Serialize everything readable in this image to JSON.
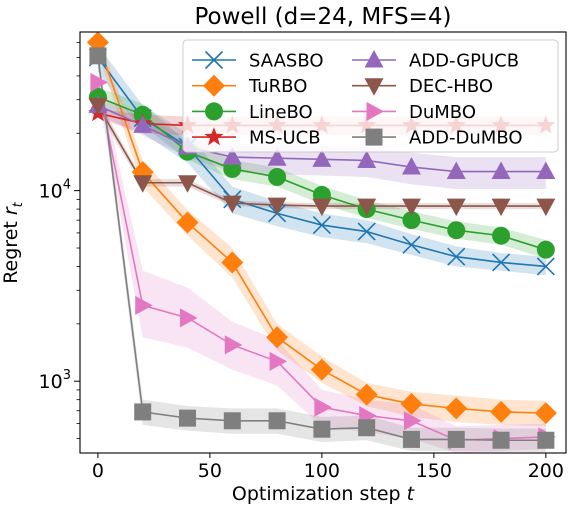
{
  "chart_data": {
    "type": "line",
    "title": "Powell (d=24, MFS=4)",
    "xlabel": "Optimization step",
    "xlabel_var": "t",
    "ylabel": "Regret",
    "ylabel_var": "r",
    "ylabel_sub": "t",
    "xlim": [
      -8,
      209
    ],
    "ylim": [
      420,
      68000
    ],
    "yscale": "log",
    "x_ticks": [
      0,
      50,
      100,
      150,
      200
    ],
    "y_ticks": [
      {
        "value": 1000,
        "base": "10",
        "exp": "3"
      },
      {
        "value": 10000,
        "base": "10",
        "exp": "4"
      }
    ],
    "grid": false,
    "legend_position": "top-right",
    "series": [
      {
        "name": "SAASBO",
        "color": "#1f77b4",
        "marker": "x",
        "x": [
          0,
          20,
          40,
          60,
          80,
          100,
          120,
          140,
          160,
          180,
          200
        ],
        "y": [
          50000,
          24000,
          17000,
          9000,
          7600,
          6600,
          6100,
          5200,
          4500,
          4200,
          4000
        ],
        "lo": [
          42000,
          20000,
          14000,
          7600,
          6500,
          5700,
          5300,
          4600,
          4000,
          3800,
          3600
        ],
        "hi": [
          58000,
          28000,
          20000,
          10500,
          8800,
          7600,
          7000,
          5900,
          5100,
          4700,
          4500
        ]
      },
      {
        "name": "TuRBO",
        "color": "#ff7f0e",
        "marker": "D",
        "x": [
          0,
          20,
          40,
          60,
          80,
          100,
          120,
          140,
          160,
          180,
          200
        ],
        "y": [
          60000,
          12500,
          6800,
          4200,
          1700,
          1150,
          850,
          760,
          720,
          690,
          680
        ],
        "lo": [
          52000,
          10500,
          5800,
          3500,
          1450,
          980,
          740,
          650,
          610,
          590,
          580
        ],
        "hi": [
          66000,
          14500,
          7900,
          5000,
          2000,
          1350,
          980,
          880,
          840,
          800,
          790
        ]
      },
      {
        "name": "LineBO",
        "color": "#2ca02c",
        "marker": "o",
        "x": [
          0,
          20,
          40,
          60,
          80,
          100,
          120,
          140,
          160,
          180,
          200
        ],
        "y": [
          31000,
          25000,
          16000,
          13000,
          11800,
          9500,
          8000,
          7000,
          6200,
          5800,
          4900
        ],
        "lo": [
          27000,
          22000,
          14500,
          11500,
          10500,
          8500,
          7200,
          6300,
          5600,
          5200,
          4400
        ],
        "hi": [
          35000,
          28500,
          18000,
          14500,
          13200,
          10600,
          8900,
          7800,
          6900,
          6400,
          5500
        ]
      },
      {
        "name": "MS-UCB",
        "color": "#d62728",
        "marker": "*",
        "x": [
          0,
          20,
          40,
          60,
          80,
          100,
          120,
          140,
          160,
          180,
          200
        ],
        "y": [
          25500,
          22500,
          22000,
          22000,
          22000,
          22000,
          22000,
          22000,
          22000,
          22000,
          22000
        ],
        "lo": [
          24000,
          20000,
          19500,
          19500,
          19500,
          19500,
          19500,
          19500,
          19500,
          19500,
          19500
        ],
        "hi": [
          27000,
          25000,
          24500,
          24500,
          24500,
          24500,
          24500,
          24500,
          24500,
          24500,
          24500
        ]
      },
      {
        "name": "ADD-GPUCB",
        "color": "#9467bd",
        "marker": "^",
        "x": [
          0,
          20,
          40,
          60,
          80,
          100,
          120,
          140,
          160,
          180,
          200
        ],
        "y": [
          28000,
          22000,
          17000,
          15000,
          14800,
          14600,
          14400,
          13300,
          12600,
          12600,
          12600
        ],
        "lo": [
          25000,
          19500,
          15000,
          12500,
          12200,
          12000,
          11800,
          10800,
          10200,
          10200,
          10200
        ],
        "hi": [
          31000,
          24500,
          19000,
          17500,
          17400,
          17200,
          17000,
          15800,
          15000,
          15000,
          15000
        ]
      },
      {
        "name": "DEC-HBO",
        "color": "#8c564b",
        "marker": "v",
        "x": [
          0,
          20,
          40,
          60,
          80,
          100,
          120,
          140,
          160,
          180,
          200
        ],
        "y": [
          28000,
          11000,
          11000,
          8600,
          8400,
          8300,
          8300,
          8300,
          8300,
          8300,
          8300
        ],
        "lo": [
          26000,
          10500,
          10500,
          8300,
          8100,
          8000,
          8000,
          8000,
          8000,
          8000,
          8000
        ],
        "hi": [
          30000,
          11500,
          11500,
          8900,
          8700,
          8600,
          8600,
          8600,
          8600,
          8600,
          8600
        ]
      },
      {
        "name": "DuMBO",
        "color": "#e377c2",
        "marker": ">",
        "x": [
          0,
          20,
          40,
          60,
          80,
          100,
          120,
          140,
          160,
          180,
          200
        ],
        "y": [
          37000,
          2500,
          2150,
          1550,
          1270,
          730,
          660,
          620,
          490,
          500,
          510
        ],
        "lo": [
          32000,
          1700,
          1500,
          1150,
          950,
          580,
          540,
          500,
          420,
          430,
          440
        ],
        "hi": [
          42000,
          3800,
          3100,
          2050,
          1650,
          900,
          800,
          750,
          580,
          590,
          600
        ]
      },
      {
        "name": "ADD-DuMBO",
        "color": "#7f7f7f",
        "marker": "s",
        "x": [
          0,
          20,
          40,
          60,
          80,
          100,
          120,
          140,
          160,
          180,
          200
        ],
        "y": [
          51000,
          690,
          640,
          620,
          620,
          560,
          570,
          495,
          495,
          490,
          490
        ],
        "lo": [
          45000,
          590,
          550,
          530,
          530,
          480,
          490,
          430,
          430,
          425,
          425
        ],
        "hi": [
          58000,
          800,
          740,
          720,
          720,
          650,
          660,
          570,
          570,
          565,
          565
        ]
      }
    ]
  }
}
